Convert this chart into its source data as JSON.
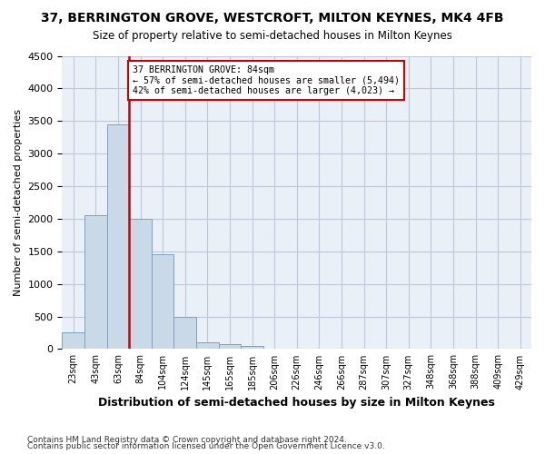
{
  "title": "37, BERRINGTON GROVE, WESTCROFT, MILTON KEYNES, MK4 4FB",
  "subtitle": "Size of property relative to semi-detached houses in Milton Keynes",
  "xlabel": "Distribution of semi-detached houses by size in Milton Keynes",
  "ylabel": "Number of semi-detached properties",
  "footnote1": "Contains HM Land Registry data © Crown copyright and database right 2024.",
  "footnote2": "Contains public sector information licensed under the Open Government Licence v3.0.",
  "annotation_text": "37 BERRINGTON GROVE: 84sqm\n← 57% of semi-detached houses are smaller (5,494)\n42% of semi-detached houses are larger (4,023) →",
  "bar_color": "#c9d9e8",
  "bar_edgecolor": "#7ba3c0",
  "redline_color": "#cc0000",
  "grid_color": "#c0c8d8",
  "bg_color": "#eaf0f8",
  "annotation_box_color": "#ffffff",
  "annotation_box_edgecolor": "#cc0000",
  "bins": [
    "23sqm",
    "43sqm",
    "63sqm",
    "84sqm",
    "104sqm",
    "124sqm",
    "145sqm",
    "165sqm",
    "185sqm",
    "206sqm",
    "226sqm",
    "246sqm",
    "266sqm",
    "287sqm",
    "307sqm",
    "327sqm",
    "348sqm",
    "368sqm",
    "388sqm",
    "409sqm",
    "429sqm"
  ],
  "values": [
    250,
    2050,
    3450,
    2000,
    1450,
    500,
    100,
    75,
    50,
    0,
    0,
    0,
    0,
    0,
    0,
    0,
    0,
    0,
    0,
    0,
    0
  ],
  "ylim": [
    0,
    4500
  ],
  "yticks": [
    0,
    500,
    1000,
    1500,
    2000,
    2500,
    3000,
    3500,
    4000,
    4500
  ]
}
